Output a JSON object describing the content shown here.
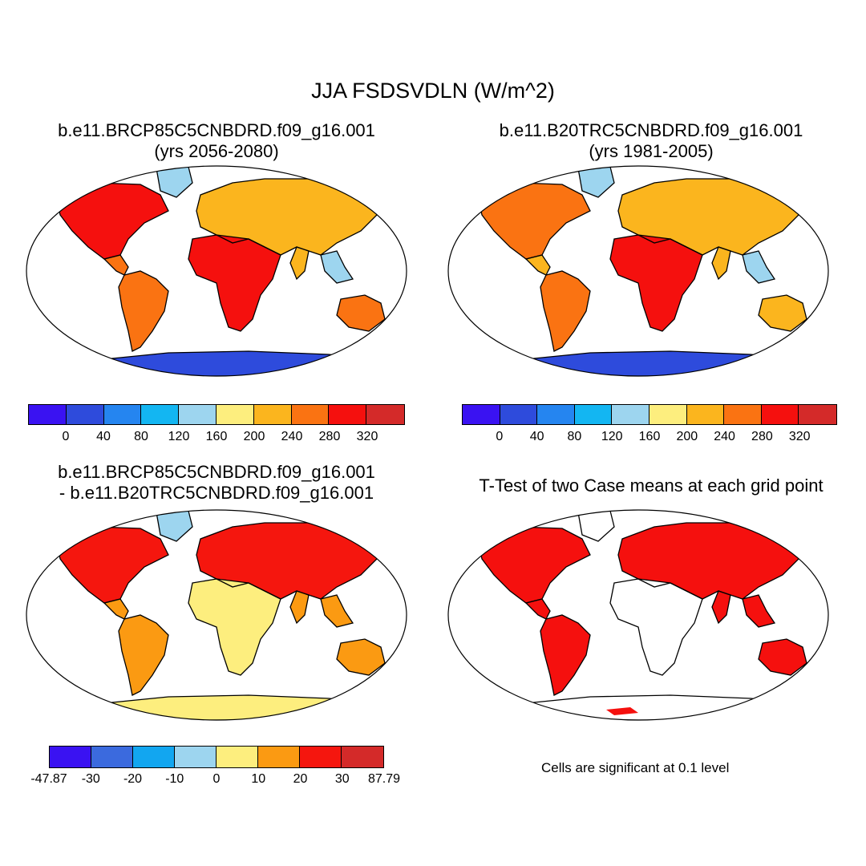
{
  "title": "JJA FSDSVDLN (W/m^2)",
  "panels": [
    {
      "line1": "b.e11.BRCP85C5CNBDRD.f09_g16.001",
      "line2": "(yrs 2056-2080)"
    },
    {
      "line1": "b.e11.B20TRC5CNBDRD.f09_g16.001",
      "line2": "(yrs 1981-2005)"
    },
    {
      "line1": "b.e11.BRCP85C5CNBDRD.f09_g16.001",
      "line2": "- b.e11.B20TRC5CNBDRD.f09_g16.001"
    },
    {
      "line1": "T-Test of two Case means at each grid point",
      "line2": ""
    }
  ],
  "colorbar_abs": {
    "colors": [
      "#3a12f2",
      "#2e4bdc",
      "#2585f0",
      "#13b6f2",
      "#9dd5ef",
      "#fdee7e",
      "#fbb51e",
      "#fa7312",
      "#f5100e",
      "#d42a29"
    ],
    "labels": [
      "0",
      "40",
      "80",
      "120",
      "160",
      "200",
      "240",
      "280",
      "320"
    ]
  },
  "colorbar_diff": {
    "colors": [
      "#3a12f2",
      "#3b6ade",
      "#12a6f0",
      "#9dd5ef",
      "#fdee7e",
      "#fb9a12",
      "#f5160e",
      "#d42a29"
    ],
    "labels": [
      "-47.87",
      "-30",
      "-20",
      "-10",
      "0",
      "10",
      "20",
      "30",
      "87.79"
    ]
  },
  "note": "Cells are significant at 0.1 level"
}
